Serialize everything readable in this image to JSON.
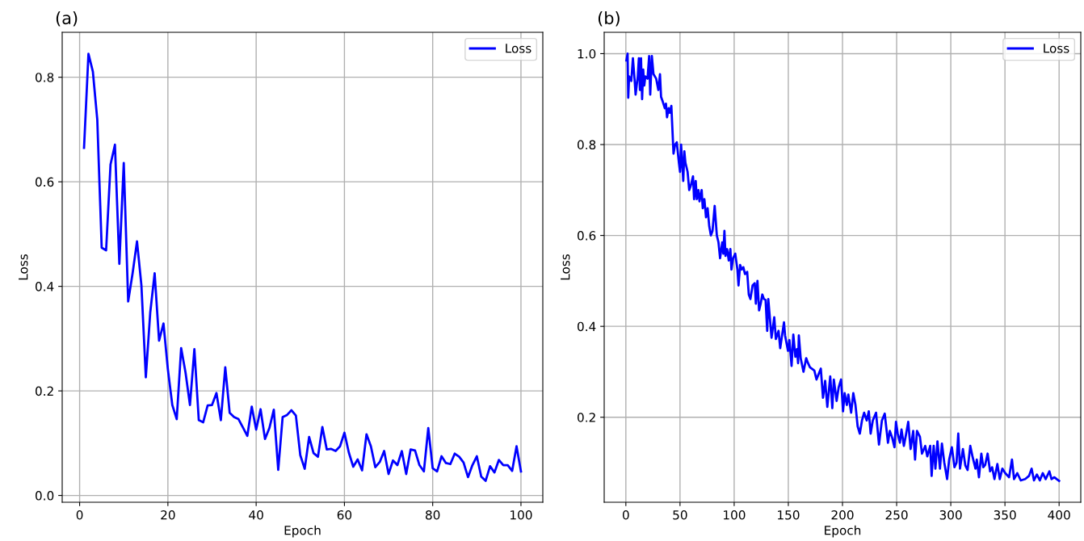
{
  "chart_data": [
    {
      "type": "line",
      "annotations": [
        "(a)"
      ],
      "xlabel": "Epoch",
      "ylabel": "Loss",
      "xlim": [
        -3.95,
        104.95
      ],
      "ylim": [
        -0.013,
        0.886
      ],
      "xticks": [
        0,
        20,
        40,
        60,
        80,
        100
      ],
      "yticks": [
        {
          "value": 0,
          "label": "0.0"
        },
        0.2,
        0.4,
        0.6,
        0.8
      ],
      "grid": true,
      "legend": "top right",
      "x": [
        1,
        2,
        3,
        4,
        5,
        6,
        7,
        8,
        9,
        10,
        11,
        12,
        13,
        14,
        15,
        16,
        17,
        18,
        19,
        20,
        21,
        22,
        23,
        24,
        25,
        26,
        27,
        28,
        29,
        30,
        31,
        32,
        33,
        34,
        35,
        36,
        37,
        38,
        39,
        40,
        41,
        42,
        43,
        44,
        45,
        46,
        47,
        48,
        49,
        50,
        51,
        52,
        53,
        54,
        55,
        56,
        57,
        58,
        59,
        60,
        61,
        62,
        63,
        64,
        65,
        66,
        67,
        68,
        69,
        70,
        71,
        72,
        73,
        74,
        75,
        76,
        77,
        78,
        79,
        80,
        81,
        82,
        83,
        84,
        85,
        86,
        87,
        88,
        89,
        90,
        91,
        92,
        93,
        94,
        95,
        96,
        97,
        98,
        99,
        100
      ],
      "series": [
        {
          "name": "Loss",
          "color": "#0000ff",
          "values": [
            0.665,
            0.845,
            0.811,
            0.719,
            0.474,
            0.469,
            0.633,
            0.671,
            0.443,
            0.636,
            0.371,
            0.425,
            0.486,
            0.402,
            0.226,
            0.35,
            0.425,
            0.296,
            0.329,
            0.241,
            0.173,
            0.146,
            0.282,
            0.235,
            0.173,
            0.28,
            0.144,
            0.14,
            0.172,
            0.173,
            0.196,
            0.144,
            0.245,
            0.158,
            0.15,
            0.146,
            0.13,
            0.114,
            0.17,
            0.126,
            0.165,
            0.108,
            0.129,
            0.164,
            0.049,
            0.15,
            0.154,
            0.163,
            0.153,
            0.077,
            0.051,
            0.112,
            0.081,
            0.074,
            0.131,
            0.088,
            0.089,
            0.085,
            0.094,
            0.12,
            0.082,
            0.055,
            0.069,
            0.048,
            0.117,
            0.094,
            0.054,
            0.064,
            0.085,
            0.041,
            0.067,
            0.058,
            0.085,
            0.041,
            0.088,
            0.086,
            0.058,
            0.046,
            0.129,
            0.052,
            0.046,
            0.075,
            0.062,
            0.06,
            0.08,
            0.074,
            0.063,
            0.035,
            0.058,
            0.075,
            0.036,
            0.028,
            0.056,
            0.044,
            0.068,
            0.058,
            0.058,
            0.047,
            0.094,
            0.046
          ]
        }
      ]
    },
    {
      "type": "line",
      "annotations": [
        "(b)"
      ],
      "xlabel": "Epoch",
      "ylabel": "Loss",
      "xlim": [
        -20,
        420
      ],
      "ylim": [
        0.013,
        1.047
      ],
      "xticks": [
        0,
        50,
        100,
        150,
        200,
        250,
        300,
        350,
        400
      ],
      "yticks": [
        0.2,
        0.4,
        0.6,
        0.8,
        {
          "value": 1,
          "label": "1.0"
        }
      ],
      "grid": true,
      "legend": "top right",
      "x": [
        0.5,
        1.6,
        2.2,
        3,
        5,
        6.5,
        8,
        9,
        11,
        12,
        13,
        14,
        15,
        16,
        17,
        18,
        20,
        21.5,
        22.5,
        24,
        25.5,
        28,
        30,
        31.5,
        32.5,
        34,
        36,
        37,
        38,
        39.5,
        40.5,
        42,
        44,
        45.5,
        47,
        49,
        50,
        51,
        53,
        54,
        55,
        57,
        58.5,
        60,
        62,
        63,
        64.5,
        65.5,
        67,
        68,
        70,
        71,
        72.5,
        74,
        75.5,
        77,
        78.5,
        80,
        82,
        84,
        85.5,
        87,
        89,
        90,
        91,
        92,
        93.5,
        95,
        96.5,
        97.5,
        99,
        101,
        103,
        104,
        105.5,
        107,
        108.5,
        110,
        112,
        113.5,
        115,
        117,
        119,
        120,
        121.5,
        123,
        124.5,
        126,
        127.5,
        129,
        130.5,
        131.5,
        134.5,
        137,
        138.5,
        141,
        142.5,
        146,
        147,
        149.7,
        151,
        153,
        154.6,
        156.5,
        158,
        159,
        159.7,
        161.4,
        164,
        166.5,
        168,
        170,
        174,
        176,
        180,
        182,
        184,
        186,
        188.7,
        190.6,
        192,
        194.6,
        196.5,
        198.7,
        200.5,
        202,
        204,
        205.4,
        208,
        210,
        212,
        214,
        216,
        218,
        220,
        222.4,
        224.3,
        226,
        228,
        231,
        233.7,
        236.4,
        239,
        242,
        243.7,
        246,
        248,
        249.4,
        251,
        253,
        254.5,
        256.7,
        258.8,
        260.7,
        262.9,
        265.3,
        267,
        268.8,
        271.5,
        273.4,
        276.4,
        278.3,
        281,
        282.3,
        284.2,
        285.8,
        287.7,
        290,
        291.8,
        294,
        296.6,
        298.5,
        301,
        303.4,
        305.3,
        306.9,
        308.5,
        311.2,
        313.4,
        315.5,
        318,
        320,
        322.8,
        324,
        326,
        328.2,
        330,
        331.7,
        334,
        336.3,
        338.2,
        340.3,
        343,
        345.2,
        347.6,
        350.3,
        353.8,
        356.5,
        358.4,
        361.4,
        364.6,
        368.7,
        372.2,
        374.6,
        376.8,
        379.5,
        382.2,
        384.9,
        387.6,
        391,
        393,
        395.7,
        397.8,
        400
      ],
      "series": [
        {
          "name": "Loss",
          "color": "#0000ff",
          "values": [
            0.985,
            1.0,
            0.903,
            0.95,
            0.94,
            0.99,
            0.945,
            0.91,
            0.95,
            0.99,
            0.92,
            0.99,
            0.9,
            0.965,
            0.93,
            0.95,
            0.945,
            0.995,
            0.91,
            0.995,
            0.955,
            0.945,
            0.92,
            0.955,
            0.905,
            0.895,
            0.88,
            0.89,
            0.86,
            0.88,
            0.87,
            0.885,
            0.78,
            0.8,
            0.805,
            0.76,
            0.74,
            0.8,
            0.72,
            0.785,
            0.76,
            0.74,
            0.7,
            0.71,
            0.73,
            0.68,
            0.72,
            0.68,
            0.7,
            0.675,
            0.7,
            0.66,
            0.68,
            0.64,
            0.66,
            0.62,
            0.6,
            0.61,
            0.665,
            0.6,
            0.585,
            0.55,
            0.585,
            0.56,
            0.61,
            0.555,
            0.57,
            0.545,
            0.57,
            0.525,
            0.55,
            0.56,
            0.525,
            0.49,
            0.535,
            0.525,
            0.53,
            0.515,
            0.52,
            0.47,
            0.46,
            0.49,
            0.495,
            0.45,
            0.5,
            0.435,
            0.45,
            0.47,
            0.46,
            0.458,
            0.39,
            0.46,
            0.375,
            0.42,
            0.372,
            0.39,
            0.352,
            0.409,
            0.38,
            0.346,
            0.37,
            0.313,
            0.382,
            0.333,
            0.35,
            0.319,
            0.38,
            0.33,
            0.3,
            0.33,
            0.32,
            0.31,
            0.303,
            0.283,
            0.307,
            0.243,
            0.28,
            0.223,
            0.29,
            0.22,
            0.283,
            0.236,
            0.266,
            0.283,
            0.213,
            0.253,
            0.227,
            0.25,
            0.21,
            0.253,
            0.227,
            0.18,
            0.164,
            0.193,
            0.21,
            0.193,
            0.213,
            0.164,
            0.193,
            0.21,
            0.14,
            0.193,
            0.208,
            0.144,
            0.17,
            0.154,
            0.134,
            0.19,
            0.164,
            0.144,
            0.173,
            0.137,
            0.164,
            0.19,
            0.13,
            0.17,
            0.107,
            0.17,
            0.157,
            0.12,
            0.137,
            0.114,
            0.137,
            0.071,
            0.137,
            0.087,
            0.147,
            0.087,
            0.142,
            0.1,
            0.064,
            0.107,
            0.134,
            0.09,
            0.1,
            0.164,
            0.087,
            0.13,
            0.094,
            0.084,
            0.137,
            0.114,
            0.087,
            0.107,
            0.068,
            0.12,
            0.09,
            0.095,
            0.12,
            0.081,
            0.09,
            0.064,
            0.097,
            0.064,
            0.087,
            0.077,
            0.068,
            0.107,
            0.064,
            0.077,
            0.061,
            0.064,
            0.071,
            0.087,
            0.061,
            0.074,
            0.061,
            0.077,
            0.064,
            0.081,
            0.064,
            0.068,
            0.064,
            0.06
          ]
        }
      ]
    }
  ]
}
